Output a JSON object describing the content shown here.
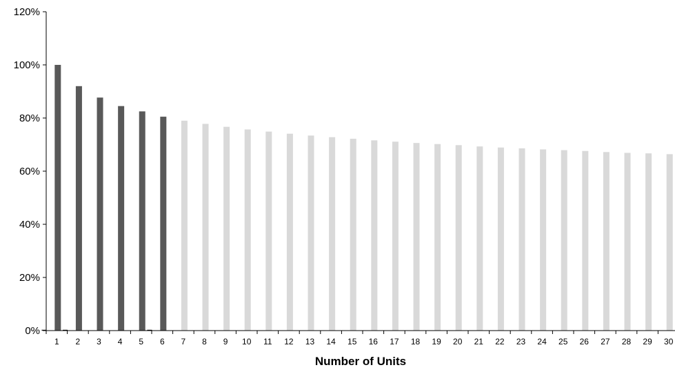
{
  "chart_data": {
    "type": "bar",
    "title": "",
    "xlabel": "Number of Units",
    "ylabel": "",
    "ylim": [
      0,
      1.2
    ],
    "y_ticks": [
      "0%",
      "20%",
      "40%",
      "60%",
      "80%",
      "100%",
      "120%"
    ],
    "y_tick_values": [
      0,
      0.2,
      0.4,
      0.6,
      0.8,
      1.0,
      1.2
    ],
    "grid": false,
    "legend": "none",
    "categories": [
      "1",
      "2",
      "3",
      "4",
      "5",
      "6",
      "7",
      "8",
      "9",
      "10",
      "11",
      "12",
      "13",
      "14",
      "15",
      "16",
      "17",
      "18",
      "19",
      "20",
      "21",
      "22",
      "23",
      "24",
      "25",
      "26",
      "27",
      "28",
      "29",
      "30"
    ],
    "series": [
      {
        "color": "#595959",
        "values": [
          1.0,
          0.92,
          0.877,
          0.845,
          0.825,
          0.805,
          null,
          null,
          null,
          null,
          null,
          null,
          null,
          null,
          null,
          null,
          null,
          null,
          null,
          null,
          null,
          null,
          null,
          null,
          null,
          null,
          null,
          null,
          null,
          null
        ]
      },
      {
        "color": "#d9d9d9",
        "values": [
          null,
          null,
          null,
          null,
          null,
          null,
          0.79,
          0.778,
          0.767,
          0.757,
          0.749,
          0.741,
          0.734,
          0.728,
          0.722,
          0.716,
          0.711,
          0.706,
          0.702,
          0.698,
          0.693,
          0.689,
          0.686,
          0.682,
          0.679,
          0.676,
          0.672,
          0.669,
          0.667,
          0.664
        ]
      },
      {
        "color": "#000000",
        "values": [
          0.003,
          0.003,
          null,
          null,
          null,
          0.003,
          null,
          null,
          null,
          null,
          null,
          null,
          null,
          null,
          null,
          null,
          null,
          null,
          null,
          null,
          null,
          null,
          null,
          null,
          null,
          null,
          null,
          null,
          null,
          null
        ]
      }
    ]
  }
}
